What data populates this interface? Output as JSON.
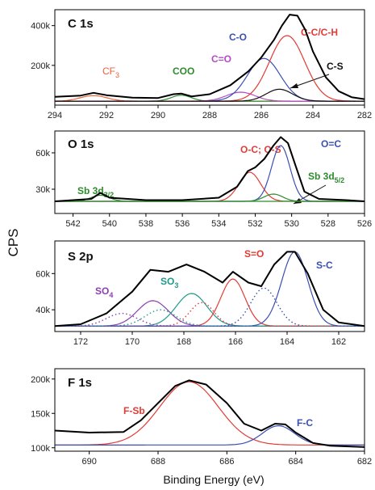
{
  "figure": {
    "ylabel": "CPS",
    "xlabel": "Binding Energy (eV)"
  },
  "chart_data": [
    {
      "type": "line",
      "title": "C 1s",
      "xlim": [
        294,
        282
      ],
      "ylim": [
        0,
        480
      ],
      "x_ticks": [
        294,
        292,
        290,
        288,
        286,
        284,
        282
      ],
      "y_ticks": [
        200,
        400
      ],
      "y_tick_labels": [
        "200k",
        "400k"
      ],
      "envelope": {
        "color": "#000000",
        "points": [
          [
            294,
            42
          ],
          [
            293,
            48
          ],
          [
            292.5,
            62
          ],
          [
            292,
            50
          ],
          [
            291,
            38
          ],
          [
            290,
            36
          ],
          [
            289.4,
            55
          ],
          [
            289.1,
            58
          ],
          [
            288.7,
            44
          ],
          [
            288,
            55
          ],
          [
            287.2,
            100
          ],
          [
            286.5,
            170
          ],
          [
            286,
            240
          ],
          [
            285.5,
            330
          ],
          [
            285.2,
            400
          ],
          [
            284.9,
            455
          ],
          [
            284.6,
            450
          ],
          [
            284.3,
            380
          ],
          [
            284,
            270
          ],
          [
            283.5,
            140
          ],
          [
            283,
            70
          ],
          [
            282.5,
            40
          ],
          [
            282,
            30
          ]
        ]
      },
      "components": [
        {
          "label": "CF3",
          "color": "#e8623a",
          "center": 292.5,
          "height": 28,
          "fwhm": 1.2
        },
        {
          "label": "COO",
          "color": "#2e8b2e",
          "center": 289.1,
          "height": 30,
          "fwhm": 0.9
        },
        {
          "label": "C=O",
          "color": "#b44bc4",
          "center": 286.8,
          "height": 45,
          "fwhm": 1.3
        },
        {
          "label": "C-O",
          "color": "#3a4fb4",
          "center": 285.9,
          "height": 215,
          "fwhm": 1.5
        },
        {
          "label": "C-C/C-H",
          "color": "#e23b34",
          "center": 285.0,
          "height": 330,
          "fwhm": 1.6
        },
        {
          "label": "C-S",
          "color": "#111111",
          "center": 285.3,
          "height": 60,
          "fwhm": 1.2
        }
      ],
      "baseline": 20
    },
    {
      "type": "line",
      "title": "O 1s",
      "xlim": [
        543,
        526
      ],
      "ylim": [
        10,
        78
      ],
      "x_ticks": [
        542,
        540,
        538,
        536,
        534,
        532,
        530,
        528,
        526
      ],
      "y_ticks": [
        30,
        60
      ],
      "y_tick_labels": [
        "30k",
        "60k"
      ],
      "envelope": {
        "color": "#000000",
        "points": [
          [
            543,
            20
          ],
          [
            541,
            22
          ],
          [
            540.5,
            27
          ],
          [
            540,
            23
          ],
          [
            538,
            21
          ],
          [
            536,
            21
          ],
          [
            534,
            23
          ],
          [
            533,
            32
          ],
          [
            532.4,
            45
          ],
          [
            532,
            48
          ],
          [
            531.5,
            55
          ],
          [
            531,
            66
          ],
          [
            530.6,
            73
          ],
          [
            530.2,
            68
          ],
          [
            529.8,
            50
          ],
          [
            529.3,
            28
          ],
          [
            528.5,
            22
          ],
          [
            527,
            21
          ],
          [
            526,
            20
          ]
        ]
      },
      "components": [
        {
          "label": "O-C; O-S",
          "color": "#e23b34",
          "center": 532.3,
          "height": 24,
          "fwhm": 1.4
        },
        {
          "label": "O=C",
          "color": "#3a4fb4",
          "center": 530.6,
          "height": 46,
          "fwhm": 1.2
        },
        {
          "label": "Sb 3d5/2",
          "color": "#2e8b2e",
          "center": 531.0,
          "height": 6,
          "fwhm": 1.2
        },
        {
          "label": "Sb 3d3/2",
          "color": "#2e8b2e",
          "center": 540.5,
          "height": 5,
          "fwhm": 1.2
        }
      ],
      "baseline": 20
    },
    {
      "type": "line",
      "title": "S 2p",
      "xlim": [
        173,
        161
      ],
      "ylim": [
        28,
        78
      ],
      "x_ticks": [
        172,
        170,
        168,
        166,
        164,
        162
      ],
      "y_ticks": [
        40,
        60
      ],
      "y_tick_labels": [
        "40k",
        "60k"
      ],
      "envelope": {
        "color": "#000000",
        "points": [
          [
            173,
            31
          ],
          [
            172,
            32
          ],
          [
            171,
            38
          ],
          [
            170,
            50
          ],
          [
            169.3,
            62
          ],
          [
            168.6,
            61
          ],
          [
            167.9,
            65
          ],
          [
            167.2,
            61
          ],
          [
            166.5,
            55
          ],
          [
            166.1,
            61
          ],
          [
            165.5,
            55
          ],
          [
            165,
            53
          ],
          [
            164.5,
            65
          ],
          [
            164,
            72
          ],
          [
            163.7,
            72
          ],
          [
            163.2,
            60
          ],
          [
            162.6,
            40
          ],
          [
            162,
            33
          ],
          [
            161,
            31
          ]
        ]
      },
      "components": [
        {
          "label": "SO4",
          "color": "#8b3fb0",
          "center": 169.2,
          "height": 14,
          "fwhm": 1.4
        },
        {
          "label": "SO3",
          "color": "#1f9a8a",
          "center": 167.7,
          "height": 18,
          "fwhm": 1.4
        },
        {
          "label": "S=O",
          "color": "#e23b34",
          "center": 166.1,
          "height": 26,
          "fwhm": 1.1
        },
        {
          "label": "S-C",
          "color": "#3a4fb4",
          "center": 163.7,
          "height": 41,
          "fwhm": 1.2
        },
        {
          "label": "",
          "color": "#e23b34",
          "center": 167.3,
          "height": 13,
          "fwhm": 1.1,
          "dotted": true
        },
        {
          "label": "",
          "color": "#3a4fb4",
          "center": 164.9,
          "height": 21,
          "fwhm": 1.2,
          "dotted": true
        },
        {
          "label": "",
          "color": "#8b3fb0",
          "center": 170.4,
          "height": 7,
          "fwhm": 1.4,
          "dotted": true
        },
        {
          "label": "",
          "color": "#1f9a8a",
          "center": 168.9,
          "height": 9,
          "fwhm": 1.4,
          "dotted": true
        }
      ],
      "baseline": 31
    },
    {
      "type": "line",
      "title": "F 1s",
      "xlim": [
        691,
        682
      ],
      "ylim": [
        95,
        215
      ],
      "x_ticks": [
        690,
        688,
        686,
        684,
        682
      ],
      "y_ticks": [
        100,
        150,
        200
      ],
      "y_tick_labels": [
        "100k",
        "150k",
        "200k"
      ],
      "envelope": {
        "color": "#000000",
        "points": [
          [
            691,
            125
          ],
          [
            690,
            122
          ],
          [
            689,
            123
          ],
          [
            688.5,
            140
          ],
          [
            688,
            165
          ],
          [
            687.5,
            190
          ],
          [
            687.1,
            198
          ],
          [
            686.6,
            192
          ],
          [
            686,
            165
          ],
          [
            685.5,
            135
          ],
          [
            685,
            125
          ],
          [
            684.6,
            135
          ],
          [
            684.3,
            134
          ],
          [
            684,
            122
          ],
          [
            683.5,
            107
          ],
          [
            683,
            103
          ],
          [
            682,
            101
          ]
        ]
      },
      "components": [
        {
          "label": "F-Sb",
          "color": "#e23b34",
          "center": 687.1,
          "height": 92,
          "fwhm": 2.0
        },
        {
          "label": "F-C",
          "color": "#3a4fb4",
          "center": 684.5,
          "height": 28,
          "fwhm": 1.1
        }
      ],
      "baseline": 104
    }
  ],
  "labels": {
    "panel0": [
      "CF",
      "3",
      "COO",
      "C=O",
      "C-O",
      "C-C/C-H",
      "C-S"
    ],
    "panel1": [
      "Sb 3d",
      "3/2",
      "O-C; O-S",
      "O=C",
      "Sb 3d",
      "5/2"
    ],
    "panel2": [
      "SO",
      "4",
      "SO",
      "3",
      "S=O",
      "S-C"
    ],
    "panel3": [
      "F-Sb",
      "F-C"
    ]
  }
}
